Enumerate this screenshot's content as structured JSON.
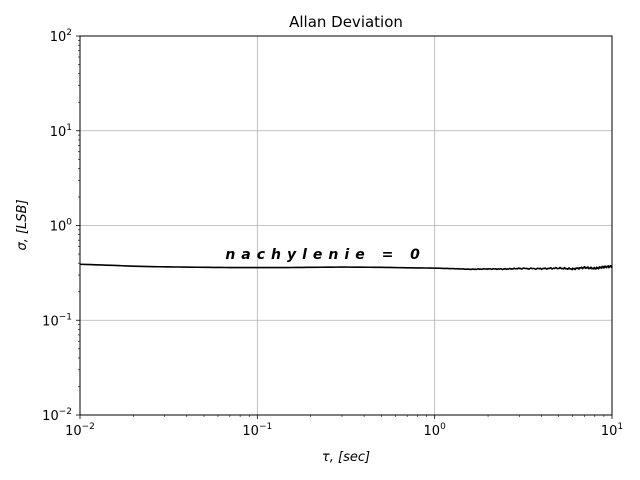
{
  "chart_data": {
    "type": "line",
    "title": "Allan Deviation",
    "xlabel": "τ, [sec]",
    "ylabel": "σ, [LSB]",
    "xscale": "log",
    "yscale": "log",
    "xlim": [
      0.01,
      10
    ],
    "ylim": [
      0.01,
      100
    ],
    "x_ticks": [
      {
        "value": 0.01,
        "base": "10",
        "exp": "−2"
      },
      {
        "value": 0.1,
        "base": "10",
        "exp": "−1"
      },
      {
        "value": 1,
        "base": "10",
        "exp": "0"
      },
      {
        "value": 10,
        "base": "10",
        "exp": "1"
      }
    ],
    "y_ticks": [
      {
        "value": 0.01,
        "base": "10",
        "exp": "−2"
      },
      {
        "value": 0.1,
        "base": "10",
        "exp": "−1"
      },
      {
        "value": 1,
        "base": "10",
        "exp": "0"
      },
      {
        "value": 10,
        "base": "10",
        "exp": "1"
      },
      {
        "value": 100,
        "base": "10",
        "exp": "2"
      }
    ],
    "grid": true,
    "annotation": {
      "text": "nachylenie = 0",
      "x": 0.066,
      "y": 0.5
    },
    "series": [
      {
        "color": "#000000",
        "x": [
          0.01,
          0.015,
          0.02,
          0.03,
          0.05,
          0.07,
          0.1,
          0.15,
          0.2,
          0.3,
          0.5,
          0.7,
          1.0,
          1.3,
          1.6,
          2.0,
          2.5,
          3.0,
          4.0,
          5.0,
          6.0,
          7.0,
          8.0,
          9.0,
          10.0
        ],
        "y": [
          0.39,
          0.38,
          0.372,
          0.366,
          0.362,
          0.36,
          0.36,
          0.36,
          0.362,
          0.364,
          0.362,
          0.358,
          0.355,
          0.35,
          0.345,
          0.348,
          0.347,
          0.352,
          0.35,
          0.355,
          0.348,
          0.36,
          0.352,
          0.365,
          0.37
        ]
      }
    ]
  }
}
